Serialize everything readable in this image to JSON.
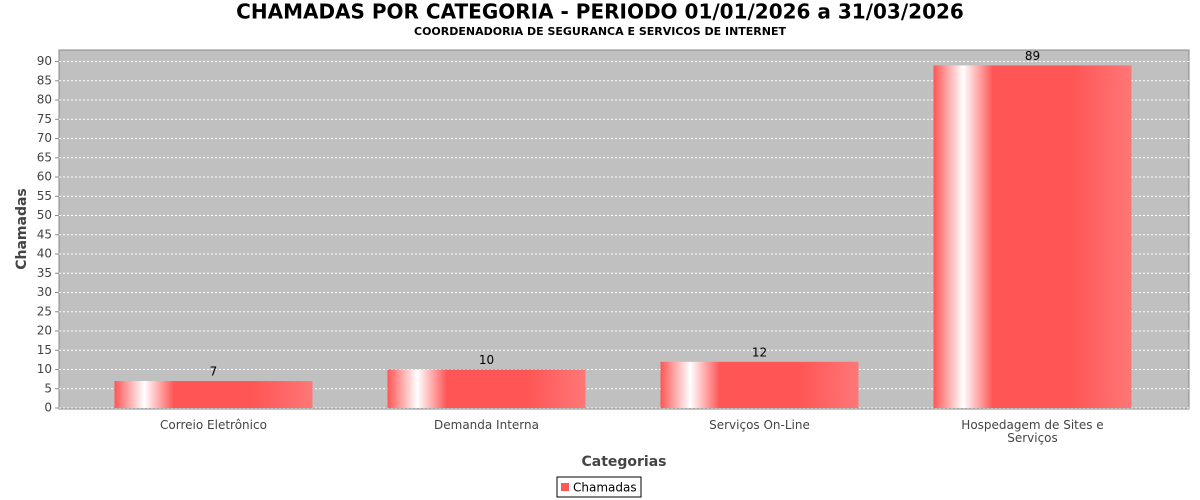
{
  "chart_data": {
    "type": "bar",
    "title": "CHAMADAS POR CATEGORIA - PERIODO 01/01/2026 a 31/03/2026",
    "subtitle": "COORDENADORIA DE SEGURANCA E SERVICOS DE INTERNET",
    "x_label": "Categorias",
    "y_label": "Chamadas",
    "categories": [
      "Correio Eletrônico",
      "Demanda Interna",
      "Serviços On-Line",
      "Hospedagem de Sites e Serviços"
    ],
    "series": [
      {
        "name": "Chamadas",
        "color": "#ff5555",
        "values": [
          7,
          10,
          12,
          89
        ]
      }
    ],
    "ylim": [
      0,
      93
    ],
    "yticks": [
      0,
      5,
      10,
      15,
      20,
      25,
      30,
      35,
      40,
      45,
      50,
      55,
      60,
      65,
      70,
      75,
      80,
      85,
      90
    ],
    "grid": true,
    "legend": "bottom"
  }
}
